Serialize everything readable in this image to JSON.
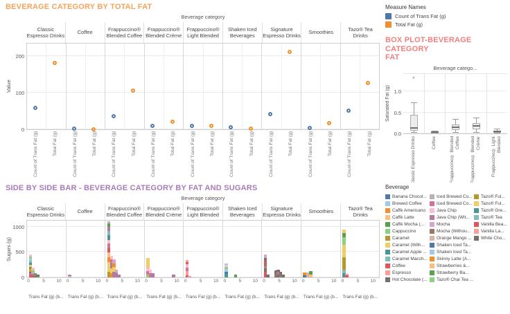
{
  "palette": [
    "#4E79A7",
    "#A0CBE8",
    "#F28E2B",
    "#FFBE7D",
    "#59A14F",
    "#8CD17D",
    "#B6992D",
    "#F1CE63",
    "#499894",
    "#86BCB6",
    "#E15759",
    "#FF9D9A",
    "#79706E",
    "#BAB0AC",
    "#D37295",
    "#FABFD2",
    "#B07AA1",
    "#D4A6C8",
    "#9D7660",
    "#D7B5A6"
  ],
  "measure_legend": {
    "title": "Measure Names",
    "items": [
      {
        "label": "Count of Trans Fat (g)",
        "color": "#4E79A7"
      },
      {
        "label": "Total Fat (g)",
        "color": "#F28E2B"
      }
    ]
  },
  "beverage_legend": {
    "title": "Beverage",
    "columns": [
      [
        "Banana Chocol...",
        "Brewed Coffee",
        "Caffè Americano",
        "Caffè Latte",
        "Caffè Mocha (...",
        "Cappuccino",
        "Caramel",
        "Caramel (With...",
        "Caramel Apple ...",
        "Caramel Macch...",
        "Coffee",
        "Espresso",
        "Hot Chocolate (..."
      ],
      [
        "Iced Brewed Co...",
        "Iced Brewed Co...",
        "Java Chip",
        "Java Chip (Wit...",
        "Mocha",
        "Mocha (Withou...",
        "Orange Mango ...",
        "Shaken Iced Ta...",
        "Shaken Iced Ta...",
        "Skinny Latte (A...",
        "Strawberries &...",
        "Strawberry Ba...",
        "Tazo® Chai Tea ..."
      ],
      [
        "Tazo® Ful...",
        "Tazo® Ful...",
        "Tazo® Gre...",
        "Tazo® Tea",
        "Vanilla Bea...",
        "Vanilla La...",
        "White Cho..."
      ]
    ]
  },
  "chart_data": [
    {
      "id": "beverage-category-by-total-fat",
      "type": "scatter",
      "title": "BEVERAGE CATEGORY BY TOTAL FAT",
      "title_color": "#F3A45A",
      "column_header": "Beverage category",
      "ylabel": "Value",
      "yticks": [
        0,
        100,
        200
      ],
      "ylim": [
        0,
        237
      ],
      "categories": [
        [
          "Classic",
          "Espresso Drinks"
        ],
        [
          "Coffee"
        ],
        [
          "Frappuccino®",
          "Blended Coffee"
        ],
        [
          "Frappuccino®",
          "Blended Crème"
        ],
        [
          "Frappuccino®",
          "Light Blended"
        ],
        [
          "Shaken Iced",
          "Beverages"
        ],
        [
          "Signature",
          "Espresso Drinks"
        ],
        [
          "Smoothies"
        ],
        [
          "Tazo® Tea",
          "Drinks"
        ]
      ],
      "series": [
        {
          "name": "Count of Trans Fat (g)",
          "color": "#4E79A7",
          "values": [
            63,
            5,
            40,
            13,
            13,
            10,
            45,
            8,
            55
          ]
        },
        {
          "name": "Total Fat (g)",
          "color": "#F28E2B",
          "values": [
            185,
            3,
            110,
            25,
            14,
            6,
            215,
            20,
            130
          ]
        }
      ]
    },
    {
      "id": "box-plot-beverage-category-fat",
      "type": "box",
      "title_lines": [
        "BOX PLOT-BEVERAGE CATEGORY",
        "FAT"
      ],
      "title_color": "#F08080",
      "column_header": "Beverage catego...",
      "ylabel": "Saturated Fat (g)",
      "yticks": [
        {
          "label": "0.0",
          "value": 0
        },
        {
          "label": "0.5",
          "value": 0.5
        },
        {
          "label": "1.0",
          "value": 1
        }
      ],
      "ylim": [
        0,
        1.45
      ],
      "categories": [
        "Classic Espresso Drinks",
        "Coffee",
        "Frappuccino® Blended Coffee",
        "Frappuccino® Blended Crème",
        "Frappuccino® Light Blended"
      ],
      "boxes": [
        {
          "low": 0.02,
          "q1": 0.06,
          "median": 0.12,
          "q3": 0.45,
          "high": 0.72,
          "outliers": [
            1.28
          ]
        },
        {
          "low": 0,
          "q1": 0,
          "median": 0.01,
          "q3": 0.03,
          "high": 0.05,
          "outliers": []
        },
        {
          "low": 0.02,
          "q1": 0.08,
          "median": 0.13,
          "q3": 0.21,
          "high": 0.33,
          "outliers": []
        },
        {
          "low": 0.02,
          "q1": 0.1,
          "median": 0.16,
          "q3": 0.25,
          "high": 0.36,
          "outliers": []
        },
        {
          "low": 0,
          "q1": 0.01,
          "median": 0.03,
          "q3": 0.06,
          "high": 0.1,
          "outliers": []
        }
      ]
    },
    {
      "id": "side-by-side-bar-fat-and-sugars",
      "type": "bar",
      "title": "SIDE BY SIDE BAR - BEVERAGE CATEGORY BY FAT AND SUGARS",
      "title_color": "#A87BB8",
      "column_header": "Beverage category",
      "ylabel": "Sugars (g)",
      "yticks": [
        0,
        500,
        1000
      ],
      "ylim": [
        0,
        1150
      ],
      "xticks": [
        0,
        5,
        10
      ],
      "x_title": "Trans Fat (g) (b...",
      "categories": [
        [
          "Classic",
          "Espresso Drinks"
        ],
        [
          "Coffee"
        ],
        [
          "Frappuccino®",
          "Blended Coffee"
        ],
        [
          "Frappuccino®",
          "Blended Crème"
        ],
        [
          "Frappuccino®",
          "Light Blended"
        ],
        [
          "Shaken Iced",
          "Beverages"
        ],
        [
          "Signature",
          "Espresso Drinks"
        ],
        [
          "Smoothies"
        ],
        [
          "Tazo® Tea",
          "Drinks"
        ]
      ],
      "panels": [
        {
          "bars": [
            {
              "x": 0.4,
              "segments": [
                [
                  10,
                  60
                ],
                [
                  14,
                  25
                ],
                [
                  12,
                  30
                ],
                [
                  2,
                  45
                ],
                [
                  4,
                  40
                ],
                [
                  7,
                  50
                ],
                [
                  8,
                  45
                ],
                [
                  9,
                  40
                ],
                [
                  1,
                  40
                ],
                [
                  5,
                  40
                ],
                [
                  15,
                  35
                ]
              ]
            },
            {
              "x": 1.2,
              "segments": [
                [
                  10,
                  35
                ],
                [
                  16,
                  30
                ],
                [
                  17,
                  35
                ],
                [
                  5,
                  35
                ],
                [
                  3,
                  35
                ],
                [
                  15,
                  20
                ]
              ]
            },
            {
              "x": 2.0,
              "segments": [
                [
                  12,
                  30
                ],
                [
                  16,
                  30
                ],
                [
                  4,
                  25
                ]
              ]
            },
            {
              "x": 2.8,
              "segments": [
                [
                  4,
                  30
                ],
                [
                  12,
                  25
                ]
              ]
            }
          ]
        },
        {
          "bars": [
            {
              "x": 0.4,
              "segments": [
                [
                  1,
                  22
                ],
                [
                  10,
                  20
                ],
                [
                  13,
                  18
                ]
              ]
            }
          ]
        },
        {
          "bars": [
            {
              "x": 0.4,
              "segments": [
                [
                  6,
                  110
                ],
                [
                  7,
                  190
                ],
                [
                  2,
                  100
                ],
                [
                  3,
                  90
                ],
                [
                  10,
                  90
                ],
                [
                  14,
                  85
                ],
                [
                  15,
                  80
                ],
                [
                  8,
                  90
                ],
                [
                  9,
                  80
                ],
                [
                  16,
                  80
                ],
                [
                  4,
                  75
                ],
                [
                  17,
                  40
                ]
              ]
            },
            {
              "x": 1.3,
              "segments": [
                [
                  2,
                  85
                ],
                [
                  7,
                  90
                ],
                [
                  16,
                  115
                ],
                [
                  14,
                  70
                ],
                [
                  15,
                  70
                ]
              ]
            },
            {
              "x": 2.1,
              "segments": [
                [
                  16,
                  110
                ],
                [
                  7,
                  90
                ],
                [
                  2,
                  80
                ],
                [
                  17,
                  70
                ]
              ]
            },
            {
              "x": 2.9,
              "segments": [
                [
                  16,
                  90
                ],
                [
                  17,
                  60
                ]
              ]
            },
            {
              "x": 3.7,
              "segments": [
                [
                  16,
                  60
                ]
              ]
            }
          ]
        },
        {
          "bars": [
            {
              "x": 0.4,
              "segments": [
                [
                  5,
                  60
                ],
                [
                  14,
                  65
                ],
                [
                  15,
                  60
                ],
                [
                  3,
                  55
                ],
                [
                  7,
                  85
                ],
                [
                  7,
                  65
                ]
              ]
            },
            {
              "x": 1.2,
              "segments": [
                [
                  14,
                  80
                ],
                [
                  15,
                  70
                ]
              ]
            },
            {
              "x": 2.0,
              "segments": [
                [
                  16,
                  80
                ]
              ]
            },
            {
              "x": 8.8,
              "segments": [
                [
                  16,
                  55
                ]
              ]
            }
          ]
        },
        {
          "bars": [
            {
              "x": 0.4,
              "segments": [
                [
                  10,
                  45
                ],
                [
                  11,
                  85
                ],
                [
                  14,
                  60
                ],
                [
                  15,
                  70
                ],
                [
                  10,
                  45
                ],
                [
                  11,
                  35
                ]
              ]
            },
            {
              "x": 1.2,
              "segments": [
                [
                  11,
                  30
                ]
              ]
            }
          ]
        },
        {
          "bars": [
            {
              "x": 0.4,
              "segments": [
                [
                  8,
                  65
                ],
                [
                  0,
                  50
                ],
                [
                  1,
                  50
                ],
                [
                  5,
                  40
                ],
                [
                  15,
                  40
                ],
                [
                  1,
                  35
                ]
              ]
            },
            {
              "x": 3.4,
              "segments": [
                [
                  4,
                  50
                ]
              ]
            }
          ]
        },
        {
          "bars": [
            {
              "x": 0.4,
              "segments": [
                [
                  10,
                  115
                ],
                [
                  12,
                  60
                ],
                [
                  14,
                  50
                ],
                [
                  18,
                  50
                ],
                [
                  10,
                  60
                ],
                [
                  12,
                  55
                ],
                [
                  17,
                  60
                ]
              ]
            },
            {
              "x": 1.2,
              "segments": [
                [
                  12,
                  50
                ]
              ]
            },
            {
              "x": 3.8,
              "segments": [
                [
                  18,
                  70
                ],
                [
                  12,
                  65
                ]
              ]
            },
            {
              "x": 4.6,
              "segments": [
                [
                  12,
                  60
                ],
                [
                  16,
                  50
                ],
                [
                  12,
                  45
                ]
              ]
            },
            {
              "x": 5.4,
              "segments": [
                [
                  18,
                  60
                ],
                [
                  12,
                  50
                ]
              ]
            },
            {
              "x": 6.2,
              "segments": [
                [
                  12,
                  60
                ]
              ]
            }
          ]
        },
        {
          "bars": [
            {
              "x": 0.4,
              "segments": [
                [
                  0,
                  45
                ],
                [
                  2,
                  45
                ]
              ]
            },
            {
              "x": 1.4,
              "segments": [
                [
                  19,
                  90
                ]
              ]
            },
            {
              "x": 2.4,
              "segments": [
                [
                  3,
                  60
                ],
                [
                  4,
                  65
                ]
              ]
            }
          ]
        },
        {
          "bars": [
            {
              "x": 0.4,
              "segments": [
                [
                  8,
                  80
                ],
                [
                  9,
                  70
                ],
                [
                  6,
                  245
                ],
                [
                  7,
                  245
                ],
                [
                  5,
                  150
                ],
                [
                  4,
                  85
                ],
                [
                  7,
                  75
                ]
              ]
            },
            {
              "x": 1.4,
              "segments": [
                [
                  10,
                  40
                ],
                [
                  11,
                  30
                ]
              ]
            }
          ]
        }
      ]
    }
  ]
}
